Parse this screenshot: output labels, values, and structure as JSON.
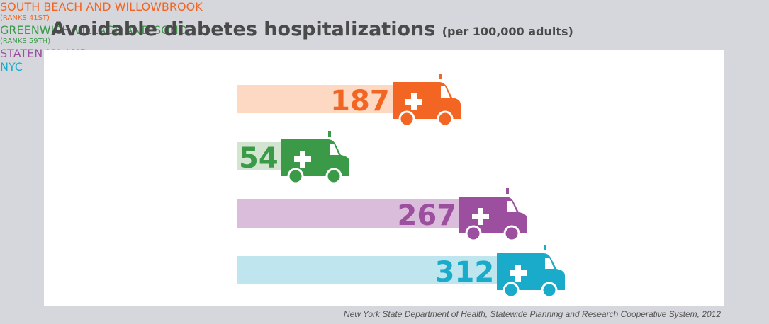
{
  "chart_data": {
    "type": "ambulance-bar",
    "title": "Avoidable diabetes hospitalizations",
    "subtitle": "(per 100,000 adults)",
    "categories": [
      "SOUTH BEACH AND WILLOWBROOK",
      "GREENWICH VILLAGE AND SOHO",
      "STATEN ISLAND",
      "NYC"
    ],
    "notes": [
      "(RANKS 41ST)",
      "(RANKS 59TH)",
      null,
      null
    ],
    "values": [
      187,
      54,
      267,
      312
    ],
    "colors": [
      "#f26522",
      "#3a9a47",
      "#9b4f9e",
      "#1aaaca"
    ],
    "bar_colors": [
      "#fdd8c3",
      "#d3e4d0",
      "#d9bddb",
      "#bfe5ee"
    ],
    "source": "New York State Department of Health, Statewide Planning and Research Cooperative System, 2012"
  }
}
